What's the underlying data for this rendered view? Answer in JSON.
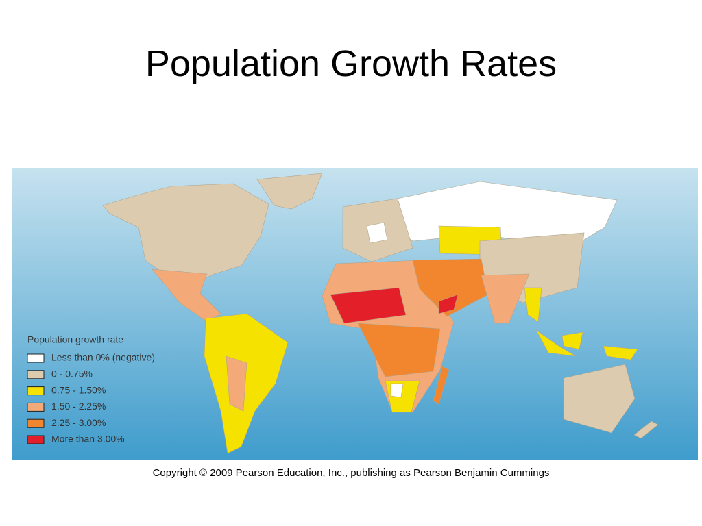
{
  "title": "Population Growth Rates",
  "map": {
    "legend": {
      "title": "Population growth rate",
      "items": [
        {
          "label": "Less than 0% (negative)",
          "color": "#ffffff"
        },
        {
          "label": "0 - 0.75%",
          "color": "#dccbaf"
        },
        {
          "label": "0.75 - 1.50%",
          "color": "#f6e200"
        },
        {
          "label": "1.50 - 2.25%",
          "color": "#f4aa78"
        },
        {
          "label": "2.25 - 3.00%",
          "color": "#f1862e"
        },
        {
          "label": "More than 3.00%",
          "color": "#e3202a"
        }
      ]
    }
  },
  "copyright": "Copyright © 2009 Pearson Education, Inc., publishing as Pearson Benjamin Cummings"
}
